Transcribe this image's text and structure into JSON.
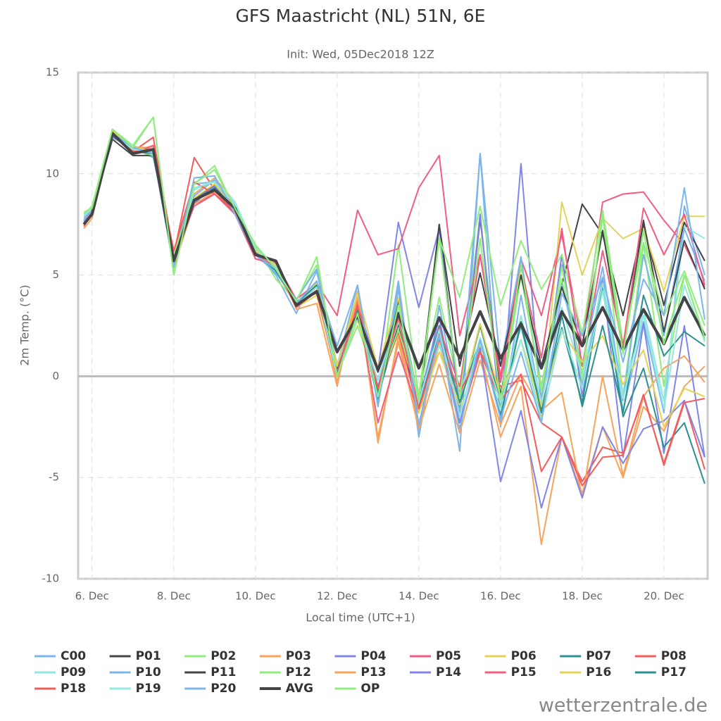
{
  "chart_data": {
    "type": "line",
    "title": "GFS Maastricht (NL) 51N, 6E",
    "subtitle": "Init: Wed, 05Dec2018 12Z",
    "x_label": "Local time (UTC+1)",
    "y_label": "2m Temp. (°C)",
    "source": "wetterzentrale.de",
    "grid": true,
    "plot_line": 0,
    "xlim": [
      5.66,
      21.07
    ],
    "xticks": [
      {
        "value": 6,
        "label": "6. Dec"
      },
      {
        "value": 8,
        "label": "8. Dec"
      },
      {
        "value": 10,
        "label": "10. Dec"
      },
      {
        "value": 12,
        "label": "12. Dec"
      },
      {
        "value": 14,
        "label": "14. Dec"
      },
      {
        "value": 16,
        "label": "16. Dec"
      },
      {
        "value": 18,
        "label": "18. Dec"
      },
      {
        "value": 20,
        "label": "20. Dec"
      }
    ],
    "ylim": [
      -10,
      15
    ],
    "yticks": [
      -10,
      -5,
      0,
      5,
      10,
      15
    ],
    "x": [
      5.8,
      6.0,
      6.5,
      7.0,
      7.5,
      8.0,
      8.5,
      9.0,
      9.5,
      10.0,
      10.5,
      11.0,
      11.5,
      12.0,
      12.5,
      13.0,
      13.5,
      14.0,
      14.5,
      15.0,
      15.5,
      16.0,
      16.5,
      17.0,
      17.5,
      18.0,
      18.5,
      19.0,
      19.5,
      20.0,
      20.5,
      21.0
    ],
    "series": [
      {
        "name": "C00",
        "color": "#7cb5ec",
        "values": [
          8,
          8.3,
          12,
          11.3,
          10.8,
          6,
          9.5,
          9.6,
          8,
          6.2,
          5,
          3.1,
          5.2,
          0.5,
          4.5,
          -1.5,
          4.6,
          -3,
          2.5,
          -3.7,
          11,
          -2.5,
          4,
          -1.5,
          5.5,
          -0.5,
          4.8,
          -1.7,
          2.7,
          -1.8,
          8.4,
          5
        ]
      },
      {
        "name": "P01",
        "color": "#434348",
        "values": [
          7.6,
          8.1,
          11.7,
          10.9,
          10.9,
          5.8,
          8.7,
          9.3,
          8.2,
          6,
          5.5,
          3.5,
          4.2,
          0,
          3,
          -1,
          2.6,
          -1.8,
          7.5,
          -1.5,
          7.8,
          -1,
          5,
          -0.5,
          4.5,
          8.5,
          7,
          3,
          7.5,
          3.5,
          7.6,
          5.7
        ]
      },
      {
        "name": "P02",
        "color": "#90ed7d",
        "values": [
          8,
          8.4,
          12.2,
          11.4,
          12.8,
          5,
          9.5,
          10.4,
          8.2,
          6.5,
          4.8,
          3.7,
          5.5,
          0,
          4,
          -1.2,
          6.5,
          -1,
          3.9,
          -0.8,
          8,
          -1.5,
          5,
          -0.5,
          4.8,
          -0.2,
          8,
          -1,
          6.5,
          -0.5,
          5,
          1.8
        ]
      },
      {
        "name": "P03",
        "color": "#f7a35c",
        "values": [
          7.3,
          7.8,
          12,
          11,
          11.2,
          5.5,
          9,
          9.8,
          8.6,
          6.1,
          5.7,
          3.3,
          3.6,
          -0.5,
          4.2,
          -3.3,
          2,
          -2.5,
          1.6,
          -2.3,
          1.3,
          -3,
          -0.5,
          -8.3,
          -3,
          -5.8,
          -2.5,
          -5,
          -1.5,
          -2.7,
          -0.5,
          0.5
        ]
      },
      {
        "name": "P04",
        "color": "#8085e9",
        "values": [
          7.6,
          8.2,
          11.8,
          11.2,
          11,
          6.2,
          8.5,
          9.5,
          8,
          6.4,
          5.2,
          3.5,
          4.4,
          0.3,
          3.6,
          0.3,
          7.6,
          3.4,
          7.3,
          -1.8,
          8,
          -2,
          10.5,
          -1.5,
          6,
          -1,
          4.8,
          -4,
          2.6,
          -3.8,
          2.5,
          -4
        ]
      },
      {
        "name": "P05",
        "color": "#f15c80",
        "values": [
          7.5,
          8.3,
          12,
          11.3,
          11.2,
          5.9,
          8.5,
          9,
          8.2,
          5.8,
          5.6,
          3.8,
          4.6,
          3,
          8.2,
          6,
          6.3,
          9.3,
          10.9,
          2,
          6,
          0,
          5.8,
          3,
          7,
          1.5,
          8.6,
          9,
          9.1,
          7.7,
          6.5,
          4.4
        ]
      },
      {
        "name": "P06",
        "color": "#e4d354",
        "values": [
          7.5,
          8.1,
          12.1,
          11.1,
          11.4,
          5.4,
          8.6,
          9.5,
          8.4,
          6.2,
          5.3,
          3.4,
          4,
          0,
          2.8,
          -0.5,
          2.1,
          -1,
          1.6,
          -1.8,
          1.5,
          -1,
          1.8,
          -2,
          8.6,
          5,
          7.8,
          6.8,
          7.3,
          4.2,
          7.9,
          7.9
        ]
      },
      {
        "name": "P07",
        "color": "#2b908f",
        "values": [
          7.7,
          8,
          11.9,
          11.1,
          11.1,
          5.6,
          8.6,
          9.3,
          8.4,
          6,
          5.4,
          3.6,
          4.5,
          0.5,
          3.5,
          -0.8,
          3.7,
          -1.2,
          2.5,
          -1.5,
          2.5,
          -1.3,
          2.5,
          -1.6,
          2.4,
          -1.3,
          4.5,
          -2,
          0.4,
          -3.5,
          -2.3,
          -5.3
        ]
      },
      {
        "name": "P08",
        "color": "#f45b5b",
        "values": [
          7.4,
          8.1,
          12,
          11.1,
          11.8,
          6,
          10.8,
          9.2,
          8,
          6.1,
          5.5,
          3.7,
          4.1,
          0.2,
          3.7,
          -0.6,
          2.2,
          -1.8,
          2.1,
          -2.3,
          1.2,
          -0.5,
          -0.2,
          -2.3,
          -3,
          -5.2,
          -3.5,
          -3.8,
          -1,
          -4.3,
          -1.2,
          -4.6
        ]
      },
      {
        "name": "P09",
        "color": "#91e8e1",
        "values": [
          7.9,
          8.2,
          12,
          11.4,
          11,
          5.3,
          9.2,
          9.7,
          8.6,
          6.3,
          5.4,
          3.5,
          4.5,
          0,
          3.5,
          -0.5,
          2.7,
          -1,
          1.5,
          -0.7,
          1.7,
          -1.7,
          3,
          -1.3,
          3.4,
          0,
          4.6,
          -0.8,
          3.3,
          -1.2,
          7.4,
          6.8
        ]
      },
      {
        "name": "P10",
        "color": "#7cb5ec",
        "values": [
          7.8,
          8.2,
          12,
          11.2,
          11.2,
          5.7,
          8.9,
          9.7,
          8.2,
          6,
          5.1,
          3.8,
          5.3,
          0.5,
          3.4,
          -1.1,
          4.7,
          -2.7,
          3.5,
          -1.8,
          11,
          0.5,
          5.9,
          -1,
          4.5,
          0.5,
          5.4,
          -1.2,
          6,
          2,
          7.3,
          4.7
        ]
      },
      {
        "name": "P11",
        "color": "#434348",
        "values": [
          7.6,
          8,
          11.9,
          11.1,
          11.2,
          5.8,
          8.8,
          9.4,
          8.2,
          6.1,
          5.3,
          3.5,
          4.5,
          0.3,
          3.2,
          0.2,
          3.2,
          -1.2,
          7.5,
          0.5,
          5.1,
          0.5,
          5,
          0.5,
          4.4,
          1.5,
          7.2,
          1.2,
          7.7,
          2.2,
          6.7,
          4.3
        ]
      },
      {
        "name": "P12",
        "color": "#90ed7d",
        "values": [
          7.9,
          8.3,
          12,
          11.2,
          10.9,
          6,
          9.3,
          9.6,
          8.1,
          6.4,
          5.4,
          3.4,
          4.6,
          0.1,
          2.5,
          -0.5,
          2.3,
          -1,
          6.8,
          3.9,
          8.4,
          3.5,
          6.7,
          4.3,
          6,
          2.1,
          8.2,
          1.6,
          6.6,
          3,
          5.2,
          2.5
        ]
      },
      {
        "name": "P13",
        "color": "#f7a35c",
        "values": [
          7.5,
          8.2,
          12.1,
          11.3,
          11.3,
          5.4,
          8.5,
          9.1,
          8.3,
          6,
          5.5,
          3.5,
          4.5,
          -0.3,
          3.9,
          -3,
          1.7,
          -2.6,
          0.6,
          -2.8,
          0.8,
          -2.4,
          0.1,
          -1.7,
          -0.8,
          -6,
          0,
          -4.9,
          -1,
          0.4,
          1,
          -0.3
        ]
      },
      {
        "name": "P14",
        "color": "#8085e9",
        "values": [
          7.6,
          8.2,
          12.1,
          11.2,
          11.2,
          5.7,
          8.7,
          9.4,
          8.4,
          6.1,
          5.5,
          3.5,
          4.7,
          0.2,
          3.1,
          -0.5,
          2.9,
          -1.3,
          2.9,
          -2.3,
          1.4,
          -5.2,
          -1.7,
          -6.5,
          -3,
          -6,
          -2.5,
          -4.3,
          -2.6,
          -2.2,
          -1.2,
          -4
        ]
      },
      {
        "name": "P15",
        "color": "#f15c80",
        "values": [
          7.5,
          8.1,
          12.2,
          11,
          11.4,
          5.8,
          8.4,
          9,
          8,
          5.8,
          5.5,
          3.6,
          4.2,
          0.2,
          3.5,
          -2.3,
          1.2,
          -1.8,
          2.4,
          -0.5,
          6,
          -0.3,
          5.4,
          0.9,
          7.3,
          0.5,
          6.2,
          1.5,
          8.3,
          6,
          8,
          4.5
        ]
      },
      {
        "name": "P16",
        "color": "#e4d354",
        "values": [
          7.5,
          8.3,
          12.1,
          11.3,
          11.1,
          5.6,
          8.8,
          9.5,
          8.3,
          6.2,
          5.5,
          3.5,
          4.6,
          0.5,
          4.1,
          0.4,
          3.9,
          -1.8,
          1.2,
          -1.4,
          2.6,
          -1,
          1.8,
          -1.5,
          2.2,
          0.7,
          2,
          -0.4,
          1.3,
          -2.5,
          -0.6,
          -1
        ]
      },
      {
        "name": "P17",
        "color": "#2b908f",
        "values": [
          7.7,
          8.1,
          11.9,
          11.1,
          11,
          5.6,
          8.7,
          9.3,
          8.3,
          6.1,
          5.2,
          3.6,
          4.5,
          0.1,
          3.3,
          -1.2,
          3.2,
          -1.6,
          2.3,
          -1.3,
          1.8,
          -2,
          2.7,
          -1.8,
          3,
          -1.5,
          2.5,
          -1.8,
          4,
          1,
          2.2,
          1.5
        ]
      },
      {
        "name": "P18",
        "color": "#f45b5b",
        "values": [
          7.5,
          8.2,
          12,
          11.1,
          11.2,
          6.2,
          9.6,
          9,
          8.1,
          6,
          5.4,
          3.4,
          4.2,
          0,
          3.5,
          -0.6,
          2.9,
          -1.6,
          1.8,
          -0.8,
          1.2,
          -1.2,
          0.1,
          -4.7,
          -3,
          -5.4,
          -4,
          -3.9,
          -0.9,
          -4.4,
          -1.3,
          -1.1
        ]
      },
      {
        "name": "P19",
        "color": "#91e8e1",
        "values": [
          7.9,
          8.3,
          12,
          11.2,
          11.1,
          5.5,
          9.3,
          9.6,
          8.5,
          6.3,
          5.4,
          3.5,
          4.4,
          0,
          2.9,
          -0.2,
          3.2,
          -1.3,
          2.3,
          -2,
          1.9,
          -1.3,
          1.8,
          -2.2,
          2.3,
          -0.6,
          4.2,
          -1.1,
          3,
          -1.6,
          4.5,
          1.7
        ]
      },
      {
        "name": "P20",
        "color": "#7cb5ec",
        "values": [
          7.7,
          8.2,
          12,
          11.3,
          11,
          5.4,
          9.8,
          9.9,
          8,
          6,
          5.3,
          3.6,
          4.7,
          1.5,
          4.5,
          -1.4,
          4.3,
          -2.4,
          2,
          -2.6,
          1.8,
          -2.1,
          1.2,
          -2.3,
          4.1,
          2,
          4.9,
          0.7,
          4.8,
          3,
          9.3,
          2.8
        ]
      },
      {
        "name": "AVG",
        "color": "#434348",
        "width": 4,
        "values": [
          7.5,
          8,
          12,
          11,
          11.2,
          5.7,
          8.7,
          9.2,
          8.3,
          6,
          5.7,
          3.5,
          4.2,
          1.2,
          3,
          0.3,
          3.1,
          0.4,
          2.9,
          0.9,
          3.2,
          0.9,
          2.6,
          0.4,
          3.2,
          1.5,
          3.4,
          1.3,
          3.3,
          1.6,
          3.9,
          2
        ]
      },
      {
        "name": "OP",
        "color": "#90ed7d",
        "values": [
          8.1,
          8.3,
          12.2,
          11.3,
          12.8,
          5,
          9.5,
          10.2,
          8.3,
          6.5,
          5.3,
          3.7,
          5.9,
          0,
          3.1,
          -1,
          3.5,
          -1.2,
          6.8,
          -1.1,
          6.8,
          -1.2,
          5.5,
          -0.8,
          5.4,
          0.1,
          7.9,
          1.1,
          7.2,
          1.6,
          5,
          1.9
        ]
      }
    ]
  }
}
